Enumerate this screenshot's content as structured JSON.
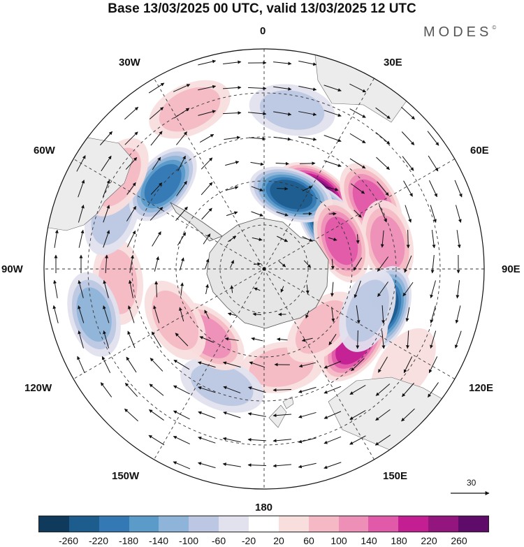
{
  "title": "Base 13/03/2025 00 UTC, valid 13/03/2025 12 UTC",
  "brand": "MODES",
  "brand_mark": "©",
  "longitude_labels": {
    "lon_0": "0",
    "lon_30e": "30E",
    "lon_60e": "60E",
    "lon_90e": "90E",
    "lon_120e": "120E",
    "lon_150e": "150E",
    "lon_180": "180",
    "lon_150w": "150W",
    "lon_120w": "120W",
    "lon_90w": "90W",
    "lon_60w": "60W",
    "lon_30w": "30W"
  },
  "vector_scale_label": "30",
  "colorbar": {
    "colors": [
      "#0f3a5c",
      "#1d5d8e",
      "#3479b3",
      "#5b9bc9",
      "#8fb4d9",
      "#bcc8e3",
      "#e2e2ef",
      "#ffffff",
      "#f9dede",
      "#f4b9c4",
      "#ee8fb8",
      "#e05aa9",
      "#c31f93",
      "#93157e",
      "#5e0b6a"
    ],
    "tick_labels": [
      "-260",
      "-220",
      "-180",
      "-140",
      "-100",
      "-60",
      "-20",
      "20",
      "60",
      "100",
      "140",
      "180",
      "220",
      "260"
    ]
  },
  "anomaly_field": {
    "centers": [
      {
        "lon": 35,
        "colat": 31,
        "value": 260
      },
      {
        "lon": 55,
        "colat": 27,
        "value": -260
      },
      {
        "lon": 20,
        "colat": 27,
        "value": -240
      },
      {
        "lon": 58,
        "colat": 43,
        "value": 170
      },
      {
        "lon": 78,
        "colat": 43,
        "value": 110
      },
      {
        "lon": 108,
        "colat": 43,
        "value": -230
      },
      {
        "lon": 130,
        "colat": 40,
        "value": 210
      },
      {
        "lon": 70,
        "colat": 28,
        "value": 140
      },
      {
        "lon": 170,
        "colat": 34,
        "value": 90
      },
      {
        "lon": 135,
        "colat": 28,
        "value": 80
      },
      {
        "lon": 125,
        "colat": 58,
        "value": 50
      },
      {
        "lon": 112,
        "colat": 38,
        "value": -70
      },
      {
        "lon": 200,
        "colat": 42,
        "value": -90
      },
      {
        "lon": 220,
        "colat": 30,
        "value": 110
      },
      {
        "lon": 240,
        "colat": 35,
        "value": 70
      },
      {
        "lon": 265,
        "colat": 50,
        "value": 60
      },
      {
        "lon": 255,
        "colat": 60,
        "value": -120
      },
      {
        "lon": 290,
        "colat": 55,
        "value": -80
      },
      {
        "lon": 310,
        "colat": 45,
        "value": -200
      },
      {
        "lon": 302,
        "colat": 59,
        "value": 80
      },
      {
        "lon": 10,
        "colat": 55,
        "value": -60
      },
      {
        "lon": 335,
        "colat": 60,
        "value": 90
      }
    ]
  }
}
